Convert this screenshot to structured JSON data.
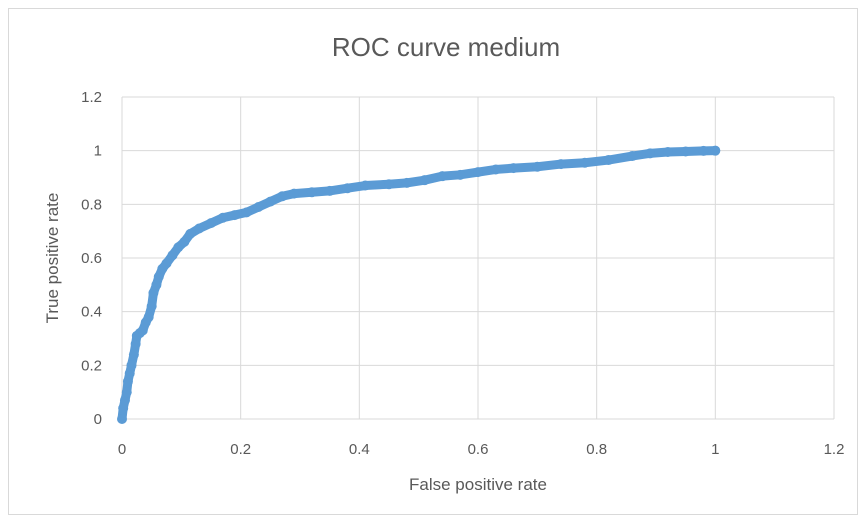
{
  "chart_data": {
    "type": "scatter",
    "title": "ROC curve medium",
    "xlabel": "False positive rate",
    "ylabel": "True positive rate",
    "xlim": [
      0,
      1.2
    ],
    "ylim": [
      0,
      1.2
    ],
    "x_ticks": [
      "0",
      "0.2",
      "0.4",
      "0.6",
      "0.8",
      "1",
      "1.2"
    ],
    "y_ticks": [
      "0",
      "0.2",
      "0.4",
      "0.6",
      "0.8",
      "1",
      "1.2"
    ],
    "grid": true,
    "legend": "none",
    "series_color": "#5b9bd5",
    "points": [
      [
        0,
        0
      ],
      [
        0.002,
        0.04
      ],
      [
        0.005,
        0.07
      ],
      [
        0.008,
        0.1
      ],
      [
        0.01,
        0.14
      ],
      [
        0.013,
        0.17
      ],
      [
        0.016,
        0.2
      ],
      [
        0.02,
        0.24
      ],
      [
        0.023,
        0.28
      ],
      [
        0.025,
        0.31
      ],
      [
        0.03,
        0.32
      ],
      [
        0.035,
        0.33
      ],
      [
        0.04,
        0.36
      ],
      [
        0.045,
        0.38
      ],
      [
        0.05,
        0.42
      ],
      [
        0.053,
        0.47
      ],
      [
        0.058,
        0.5
      ],
      [
        0.062,
        0.53
      ],
      [
        0.068,
        0.56
      ],
      [
        0.075,
        0.58
      ],
      [
        0.085,
        0.61
      ],
      [
        0.095,
        0.64
      ],
      [
        0.105,
        0.66
      ],
      [
        0.115,
        0.69
      ],
      [
        0.13,
        0.71
      ],
      [
        0.15,
        0.73
      ],
      [
        0.17,
        0.75
      ],
      [
        0.19,
        0.76
      ],
      [
        0.21,
        0.77
      ],
      [
        0.23,
        0.79
      ],
      [
        0.25,
        0.81
      ],
      [
        0.27,
        0.83
      ],
      [
        0.29,
        0.84
      ],
      [
        0.32,
        0.845
      ],
      [
        0.35,
        0.85
      ],
      [
        0.38,
        0.86
      ],
      [
        0.41,
        0.87
      ],
      [
        0.45,
        0.875
      ],
      [
        0.48,
        0.88
      ],
      [
        0.51,
        0.89
      ],
      [
        0.54,
        0.905
      ],
      [
        0.57,
        0.91
      ],
      [
        0.6,
        0.92
      ],
      [
        0.63,
        0.93
      ],
      [
        0.66,
        0.935
      ],
      [
        0.7,
        0.94
      ],
      [
        0.74,
        0.95
      ],
      [
        0.78,
        0.955
      ],
      [
        0.82,
        0.965
      ],
      [
        0.86,
        0.98
      ],
      [
        0.89,
        0.99
      ],
      [
        0.92,
        0.995
      ],
      [
        0.95,
        0.997
      ],
      [
        0.98,
        0.999
      ],
      [
        1,
        1
      ]
    ]
  }
}
